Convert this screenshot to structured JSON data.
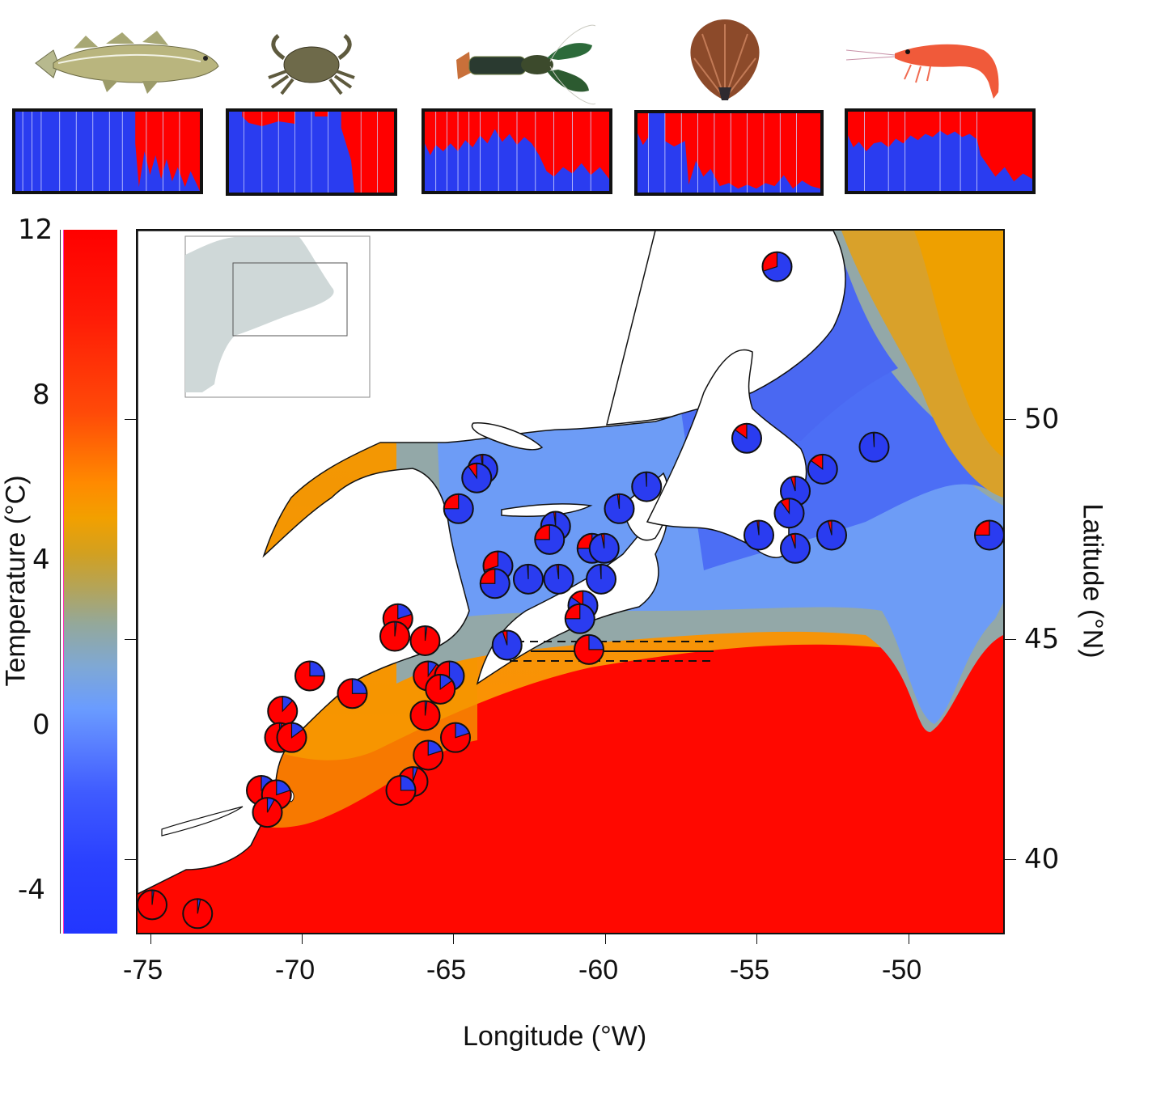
{
  "figure": {
    "species": [
      {
        "name": "Atlantic cod",
        "icon": "cod-fish-icon"
      },
      {
        "name": "Green crab",
        "icon": "crab-icon"
      },
      {
        "name": "American lobster",
        "icon": "lobster-icon"
      },
      {
        "name": "Sea scallop",
        "icon": "scallop-icon"
      },
      {
        "name": "Northern shrimp",
        "icon": "shrimp-icon"
      }
    ],
    "colors": {
      "cold_cluster": "#2a3cf0",
      "warm_cluster": "#ff0000",
      "land": "#ffffff",
      "inset_land": "#cfd8d8"
    }
  },
  "colorbar": {
    "title": "Temperature (°C)",
    "ticks": [
      "12",
      "8",
      "4",
      "0",
      "-4"
    ]
  },
  "xaxis": {
    "title": "Longitude (°W)",
    "ticks": [
      "-75",
      "-70",
      "-65",
      "-60",
      "-55",
      "-50"
    ]
  },
  "yaxis": {
    "title": "Latitude (°N)",
    "ticks": [
      "50",
      "45",
      "40"
    ]
  },
  "chart_data": {
    "type": "map",
    "title": "",
    "xlabel": "Longitude (°W)",
    "ylabel": "Latitude (°N)",
    "xlim": [
      -75.5,
      -46.5
    ],
    "ylim": [
      38.2,
      54.2
    ],
    "colorbar": {
      "label": "Temperature (°C)",
      "range": [
        -5,
        12
      ],
      "ticks": [
        -4,
        0,
        4,
        8,
        12
      ]
    },
    "annotations": [
      "45°N boundary line (solid) with dashed confidence lines from ~-62.5 to -56.5 °W"
    ],
    "pie_series": [
      "warm cluster (red)",
      "cold cluster (blue)"
    ],
    "sites": [
      {
        "lon": -54.4,
        "lat": 53.5,
        "warm_frac": 0.3
      },
      {
        "lon": -64.1,
        "lat": 48.9,
        "warm_frac": 0.02
      },
      {
        "lon": -64.3,
        "lat": 48.7,
        "warm_frac": 0.1
      },
      {
        "lon": -64.9,
        "lat": 48.0,
        "warm_frac": 0.25
      },
      {
        "lon": -58.7,
        "lat": 48.5,
        "warm_frac": 0.01
      },
      {
        "lon": -59.6,
        "lat": 48.0,
        "warm_frac": 0.02
      },
      {
        "lon": -61.7,
        "lat": 47.6,
        "warm_frac": 0.02
      },
      {
        "lon": -61.9,
        "lat": 47.3,
        "warm_frac": 0.25
      },
      {
        "lon": -60.5,
        "lat": 47.1,
        "warm_frac": 0.25
      },
      {
        "lon": -60.1,
        "lat": 47.1,
        "warm_frac": 0.03
      },
      {
        "lon": -63.6,
        "lat": 46.7,
        "warm_frac": 0.3
      },
      {
        "lon": -63.7,
        "lat": 46.3,
        "warm_frac": 0.25
      },
      {
        "lon": -62.6,
        "lat": 46.4,
        "warm_frac": 0.01
      },
      {
        "lon": -61.6,
        "lat": 46.4,
        "warm_frac": 0.02
      },
      {
        "lon": -60.2,
        "lat": 46.4,
        "warm_frac": 0.01
      },
      {
        "lon": -60.8,
        "lat": 45.8,
        "warm_frac": 0.15
      },
      {
        "lon": -60.9,
        "lat": 45.5,
        "warm_frac": 0.25
      },
      {
        "lon": -63.3,
        "lat": 44.9,
        "warm_frac": 0.05
      },
      {
        "lon": -60.6,
        "lat": 44.8,
        "warm_frac": 0.75
      },
      {
        "lon": -55.4,
        "lat": 49.6,
        "warm_frac": 0.15
      },
      {
        "lon": -51.2,
        "lat": 49.4,
        "warm_frac": 0.01
      },
      {
        "lon": -52.9,
        "lat": 48.9,
        "warm_frac": 0.15
      },
      {
        "lon": -53.8,
        "lat": 48.4,
        "warm_frac": 0.05
      },
      {
        "lon": -54.0,
        "lat": 47.9,
        "warm_frac": 0.1
      },
      {
        "lon": -55.0,
        "lat": 47.4,
        "warm_frac": 0.02
      },
      {
        "lon": -53.8,
        "lat": 47.1,
        "warm_frac": 0.05
      },
      {
        "lon": -52.6,
        "lat": 47.4,
        "warm_frac": 0.04
      },
      {
        "lon": -47.4,
        "lat": 47.4,
        "warm_frac": 0.25
      },
      {
        "lon": -66.9,
        "lat": 45.5,
        "warm_frac": 0.8
      },
      {
        "lon": -67.0,
        "lat": 45.1,
        "warm_frac": 0.98
      },
      {
        "lon": -66.0,
        "lat": 45.0,
        "warm_frac": 0.98
      },
      {
        "lon": -69.8,
        "lat": 44.2,
        "warm_frac": 0.75
      },
      {
        "lon": -68.4,
        "lat": 43.8,
        "warm_frac": 0.75
      },
      {
        "lon": -70.7,
        "lat": 43.4,
        "warm_frac": 0.88
      },
      {
        "lon": -70.8,
        "lat": 42.8,
        "warm_frac": 0.98
      },
      {
        "lon": -70.4,
        "lat": 42.8,
        "warm_frac": 0.85
      },
      {
        "lon": -65.9,
        "lat": 44.2,
        "warm_frac": 0.9
      },
      {
        "lon": -65.2,
        "lat": 44.2,
        "warm_frac": 0.5
      },
      {
        "lon": -65.5,
        "lat": 43.9,
        "warm_frac": 0.85
      },
      {
        "lon": -66.0,
        "lat": 43.3,
        "warm_frac": 0.98
      },
      {
        "lon": -65.0,
        "lat": 42.8,
        "warm_frac": 0.8
      },
      {
        "lon": -65.9,
        "lat": 42.4,
        "warm_frac": 0.8
      },
      {
        "lon": -66.4,
        "lat": 41.8,
        "warm_frac": 0.95
      },
      {
        "lon": -66.8,
        "lat": 41.6,
        "warm_frac": 0.75
      },
      {
        "lon": -71.4,
        "lat": 41.6,
        "warm_frac": 0.78
      },
      {
        "lon": -70.9,
        "lat": 41.5,
        "warm_frac": 0.8
      },
      {
        "lon": -71.2,
        "lat": 41.1,
        "warm_frac": 0.92
      },
      {
        "lon": -75.0,
        "lat": 39.0,
        "warm_frac": 0.98
      },
      {
        "lon": -73.5,
        "lat": 38.8,
        "warm_frac": 0.97
      }
    ],
    "structure_plots": [
      {
        "species": "Atlantic cod",
        "type": "stacked-bar",
        "series": [
          "cold cluster (blue)",
          "warm cluster (red)"
        ],
        "pattern": "left ~58% almost entirely blue; right ~42% mostly red with blue admixture at bottom"
      },
      {
        "species": "Green crab",
        "type": "stacked-bar",
        "pattern": "left ~70% blue with minor red at top; right ~30% red"
      },
      {
        "species": "American lobster",
        "type": "stacked-bar",
        "pattern": "mixed; left half ~40% red top, right half ~75% red"
      },
      {
        "species": "Sea scallop",
        "type": "stacked-bar",
        "pattern": "leftmost ~12% blue; rest ~90% red"
      },
      {
        "species": "Northern shrimp",
        "type": "stacked-bar",
        "pattern": "left ~72% ~40% red top / blue bottom; right ~28% mostly red"
      }
    ]
  }
}
